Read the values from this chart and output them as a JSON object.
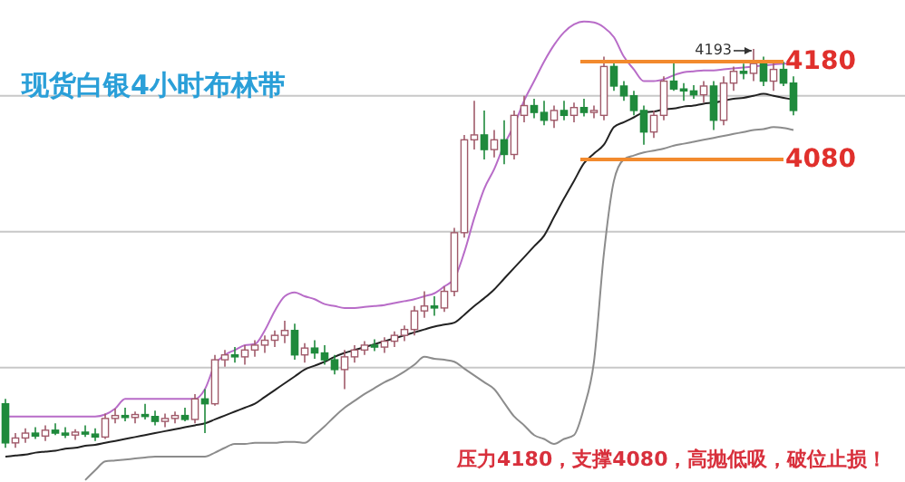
{
  "chart_data": {
    "type": "candlestick",
    "title": "现货白银4小时布林带",
    "categories": [
      null,
      null,
      null,
      null,
      null,
      null,
      null,
      null,
      null,
      null,
      null,
      null,
      null,
      null,
      null,
      null,
      null,
      null,
      null,
      null,
      null,
      null,
      null,
      null,
      null,
      null,
      null,
      null,
      null,
      null,
      null,
      null,
      null,
      null,
      null,
      null,
      null,
      null,
      null,
      null,
      null,
      null,
      null,
      null,
      null,
      null,
      null,
      null,
      null,
      null,
      null,
      null,
      null,
      null,
      null,
      null,
      null,
      null,
      null,
      null,
      null,
      null,
      null,
      null,
      null,
      null,
      null,
      null,
      null,
      null,
      null,
      null,
      null,
      null,
      null,
      null,
      null,
      null,
      null,
      null
    ],
    "ohlc": [
      [
        3830,
        3835,
        3785,
        3790
      ],
      [
        3790,
        3800,
        3785,
        3795
      ],
      [
        3795,
        3805,
        3790,
        3800
      ],
      [
        3800,
        3806,
        3794,
        3797
      ],
      [
        3797,
        3808,
        3792,
        3803
      ],
      [
        3803,
        3810,
        3798,
        3800
      ],
      [
        3800,
        3806,
        3795,
        3798
      ],
      [
        3798,
        3804,
        3793,
        3801
      ],
      [
        3801,
        3808,
        3796,
        3799
      ],
      [
        3799,
        3805,
        3792,
        3796
      ],
      [
        3796,
        3820,
        3794,
        3815
      ],
      [
        3815,
        3825,
        3810,
        3818
      ],
      [
        3818,
        3826,
        3812,
        3816
      ],
      [
        3816,
        3822,
        3810,
        3819
      ],
      [
        3819,
        3830,
        3814,
        3817
      ],
      [
        3817,
        3823,
        3808,
        3812
      ],
      [
        3812,
        3820,
        3806,
        3815
      ],
      [
        3815,
        3822,
        3810,
        3818
      ],
      [
        3818,
        3826,
        3812,
        3814
      ],
      [
        3814,
        3840,
        3810,
        3835
      ],
      [
        3835,
        3845,
        3800,
        3830
      ],
      [
        3830,
        3880,
        3828,
        3875
      ],
      [
        3875,
        3885,
        3868,
        3880
      ],
      [
        3880,
        3888,
        3872,
        3878
      ],
      [
        3878,
        3890,
        3870,
        3885
      ],
      [
        3885,
        3895,
        3878,
        3890
      ],
      [
        3890,
        3900,
        3882,
        3895
      ],
      [
        3895,
        3905,
        3888,
        3900
      ],
      [
        3900,
        3915,
        3892,
        3905
      ],
      [
        3905,
        3912,
        3875,
        3880
      ],
      [
        3880,
        3892,
        3872,
        3887
      ],
      [
        3887,
        3895,
        3876,
        3882
      ],
      [
        3882,
        3890,
        3870,
        3875
      ],
      [
        3875,
        3880,
        3860,
        3865
      ],
      [
        3865,
        3885,
        3845,
        3878
      ],
      [
        3878,
        3890,
        3872,
        3885
      ],
      [
        3885,
        3894,
        3880,
        3890
      ],
      [
        3890,
        3896,
        3884,
        3888
      ],
      [
        3888,
        3898,
        3882,
        3894
      ],
      [
        3894,
        3904,
        3888,
        3900
      ],
      [
        3900,
        3910,
        3894,
        3906
      ],
      [
        3906,
        3930,
        3900,
        3925
      ],
      [
        3925,
        3945,
        3918,
        3930
      ],
      [
        3930,
        3940,
        3920,
        3928
      ],
      [
        3928,
        3950,
        3924,
        3945
      ],
      [
        3945,
        4010,
        3940,
        4005
      ],
      [
        4005,
        4105,
        4000,
        4100
      ],
      [
        4100,
        4140,
        4090,
        4105
      ],
      [
        4105,
        4130,
        4080,
        4090
      ],
      [
        4090,
        4110,
        4082,
        4100
      ],
      [
        4100,
        4120,
        4075,
        4085
      ],
      [
        4085,
        4130,
        4080,
        4125
      ],
      [
        4125,
        4145,
        4118,
        4135
      ],
      [
        4135,
        4142,
        4122,
        4128
      ],
      [
        4128,
        4140,
        4115,
        4120
      ],
      [
        4120,
        4135,
        4112,
        4130
      ],
      [
        4130,
        4140,
        4120,
        4125
      ],
      [
        4125,
        4138,
        4118,
        4133
      ],
      [
        4133,
        4142,
        4124,
        4128
      ],
      [
        4128,
        4135,
        4122,
        4130
      ],
      [
        4125,
        4185,
        4120,
        4175
      ],
      [
        4175,
        4180,
        4150,
        4155
      ],
      [
        4155,
        4160,
        4140,
        4145
      ],
      [
        4145,
        4150,
        4125,
        4130
      ],
      [
        4130,
        4135,
        4095,
        4108
      ],
      [
        4108,
        4130,
        4102,
        4125
      ],
      [
        4125,
        4165,
        4120,
        4160
      ],
      [
        4160,
        4180,
        4150,
        4152
      ],
      [
        4152,
        4158,
        4140,
        4150
      ],
      [
        4150,
        4156,
        4142,
        4146
      ],
      [
        4146,
        4160,
        4138,
        4155
      ],
      [
        4155,
        4160,
        4110,
        4120
      ],
      [
        4120,
        4165,
        4115,
        4158
      ],
      [
        4158,
        4175,
        4150,
        4170
      ],
      [
        4170,
        4178,
        4162,
        4168
      ],
      [
        4168,
        4193,
        4160,
        4178
      ],
      [
        4178,
        4185,
        4155,
        4160
      ],
      [
        4160,
        4180,
        4150,
        4172
      ],
      [
        4172,
        4180,
        4155,
        4158
      ],
      [
        4158,
        4165,
        4125,
        4130
      ]
    ],
    "series": [
      {
        "type": "line",
        "color": "#b86cc8",
        "values": [
          3817,
          3817,
          3817,
          3817,
          3817,
          3817,
          3817,
          3817,
          3817,
          3817,
          3819,
          3825,
          3835,
          3835,
          3835,
          3835,
          3835,
          3835,
          3835,
          3835,
          3845,
          3870,
          3880,
          3885,
          3890,
          3891,
          3905,
          3925,
          3940,
          3944,
          3940,
          3937,
          3932,
          3930,
          3928,
          3928,
          3929,
          3930,
          3931,
          3933,
          3935,
          3937,
          3940,
          3943,
          3950,
          3958,
          3985,
          4020,
          4050,
          4070,
          4095,
          4115,
          4140,
          4160,
          4180,
          4197,
          4210,
          4218,
          4221,
          4220,
          4215,
          4205,
          4185,
          4172,
          4160,
          4160,
          4162,
          4166,
          4169,
          4170,
          4171,
          4171,
          4172,
          4173,
          4174,
          4175,
          4176,
          4177,
          4178,
          4178
        ]
      },
      {
        "type": "line",
        "color": "#222222",
        "values": [
          3776,
          3777,
          3778,
          3780,
          3781,
          3782,
          3784,
          3785,
          3787,
          3788,
          3790,
          3792,
          3794,
          3796,
          3798,
          3800,
          3802,
          3804,
          3806,
          3808,
          3810,
          3814,
          3818,
          3822,
          3826,
          3830,
          3837,
          3844,
          3851,
          3858,
          3865,
          3869,
          3873,
          3878,
          3882,
          3885,
          3888,
          3891,
          3894,
          3897,
          3900,
          3903,
          3906,
          3909,
          3911,
          3913,
          3921,
          3930,
          3938,
          3947,
          3958,
          3969,
          3980,
          3991,
          4002,
          4021,
          4040,
          4058,
          4076,
          4086,
          4095,
          4113,
          4118,
          4123,
          4128,
          4129,
          4131,
          4132,
          4134,
          4135,
          4137,
          4138,
          4140,
          4142,
          4143,
          4145,
          4147,
          4145,
          4143,
          4141
        ]
      },
      {
        "type": "line",
        "color": "#8c8c8c",
        "values": [
          null,
          null,
          null,
          null,
          null,
          null,
          null,
          null,
          3752,
          3762,
          3771,
          3772,
          3773,
          3774,
          3775,
          3776,
          3776,
          3776,
          3776,
          3776,
          3776,
          3780,
          3785,
          3789,
          3789,
          3790,
          3790,
          3790,
          3791,
          3791,
          3790,
          3798,
          3807,
          3817,
          3826,
          3833,
          3840,
          3846,
          3852,
          3857,
          3863,
          3870,
          3878,
          3876,
          3875,
          3873,
          3866,
          3859,
          3852,
          3845,
          3831,
          3817,
          3808,
          3798,
          3794,
          3789,
          3794,
          3798,
          3826,
          3873,
          3984,
          4058,
          4080,
          4084,
          4087,
          4089,
          4091,
          4094,
          4096,
          4098,
          4100,
          4102,
          4104,
          4106,
          4108,
          4110,
          4111,
          4113,
          4112,
          4110
        ]
      }
    ],
    "ylim": [
      3750,
      4243
    ],
    "yticks": [
      {
        "value": 3867,
        "label": null
      },
      {
        "value": 4006,
        "label": null
      },
      {
        "value": 4145,
        "label": null
      }
    ],
    "grid": "y",
    "marker": "none",
    "line_style": "solid",
    "ref_lines": [
      {
        "axis": "y",
        "value": 4180,
        "label": "4180",
        "color": "#f28a2e"
      },
      {
        "axis": "y",
        "value": 4080,
        "label": "4080",
        "color": "#f28a2e"
      }
    ],
    "annotations": [
      "4193",
      "压力4180，支撑4080，高抛低吸，破位止损！"
    ]
  }
}
